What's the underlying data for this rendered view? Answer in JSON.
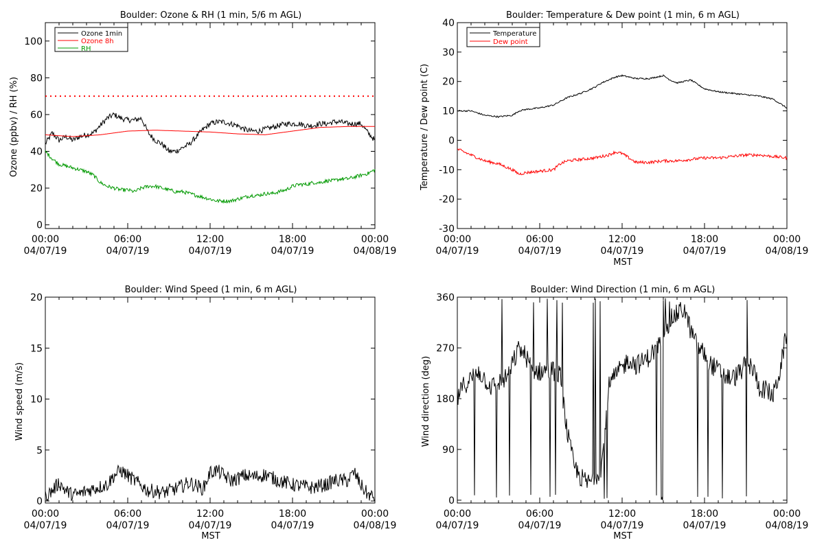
{
  "chart_data": [
    {
      "id": "ozone_rh",
      "type": "line",
      "title": "Boulder: Ozone & RH (1 min, 5/6 m AGL)",
      "xlabel": "",
      "ylabel": "Ozone (ppbv) / RH (%)",
      "xlim": [
        0,
        24
      ],
      "ylim": [
        -2,
        110
      ],
      "yticks": [
        0,
        20,
        40,
        60,
        80,
        100
      ],
      "reference_line": {
        "y": 70,
        "color": "#ff0000",
        "style": "dotted"
      },
      "legend_position": "top-left",
      "series": [
        {
          "name": "Ozone 1min",
          "color": "#000000",
          "noise": 1.5,
          "x": [
            0,
            0.5,
            1,
            1.5,
            2,
            2.5,
            3,
            3.5,
            4,
            4.5,
            5,
            5.5,
            6,
            6.5,
            7,
            7.5,
            8,
            8.5,
            9,
            9.5,
            10,
            10.5,
            11,
            11.5,
            12,
            12.5,
            13,
            13.5,
            14,
            14.5,
            15,
            15.5,
            16,
            16.5,
            17,
            17.5,
            18,
            18.5,
            19,
            19.5,
            20,
            20.5,
            21,
            21.5,
            22,
            22.5,
            23,
            23.5,
            24
          ],
          "y": [
            44,
            50,
            46,
            48,
            46,
            48,
            49,
            50,
            54,
            58,
            60,
            58,
            57,
            57,
            58,
            50,
            46,
            44,
            40,
            40,
            42,
            44,
            48,
            52,
            55,
            56,
            56,
            55,
            54,
            52,
            51,
            51,
            52,
            53,
            54,
            55,
            55,
            55,
            54,
            54,
            55,
            55,
            56,
            56,
            55,
            55,
            55,
            50,
            46
          ]
        },
        {
          "name": "Ozone 8h",
          "color": "#ff0000",
          "noise": 0,
          "x": [
            0,
            2,
            4,
            6,
            8,
            10,
            12,
            14,
            16,
            18,
            20,
            22,
            24
          ],
          "y": [
            49,
            48,
            49,
            51,
            51.5,
            51,
            50.5,
            49.5,
            49,
            51,
            53,
            53.5,
            53.5
          ]
        },
        {
          "name": "RH",
          "color": "#009900",
          "noise": 1,
          "x": [
            0,
            0.5,
            1,
            1.5,
            2,
            2.5,
            3,
            3.5,
            4,
            4.5,
            5,
            5.5,
            6,
            6.5,
            7,
            7.5,
            8,
            8.5,
            9,
            9.5,
            10,
            10.5,
            11,
            11.5,
            12,
            12.5,
            13,
            13.5,
            14,
            14.5,
            15,
            15.5,
            16,
            16.5,
            17,
            17.5,
            18,
            18.5,
            19,
            19.5,
            20,
            20.5,
            21,
            21.5,
            22,
            22.5,
            23,
            23.5,
            24
          ],
          "y": [
            40,
            36,
            33,
            32,
            31,
            30,
            29,
            27,
            23,
            21,
            20,
            19,
            19,
            18,
            20,
            21,
            21,
            20,
            19,
            18,
            18,
            17,
            16,
            15,
            14,
            13,
            13,
            13,
            14,
            15,
            16,
            16,
            17,
            17,
            18,
            19,
            21,
            22,
            22,
            23,
            23,
            24,
            24,
            25,
            25,
            26,
            27,
            28,
            30
          ]
        }
      ]
    },
    {
      "id": "temp_dew",
      "type": "line",
      "title": "Boulder: Temperature & Dew point (1 min, 6 m AGL)",
      "xlabel": "MST",
      "ylabel": "Temperature / Dew point (C)",
      "xlim": [
        0,
        24
      ],
      "ylim": [
        -30,
        40
      ],
      "yticks": [
        -30,
        -20,
        -10,
        0,
        10,
        20,
        30,
        40
      ],
      "legend_position": "top-left",
      "series": [
        {
          "name": "Temperature",
          "color": "#000000",
          "noise": 0.25,
          "x": [
            0,
            1,
            2,
            3,
            4,
            4.5,
            5,
            6,
            7,
            8,
            9,
            10,
            10.5,
            11,
            11.5,
            12,
            12.5,
            13,
            14,
            15,
            15.5,
            16,
            16.5,
            17,
            17.5,
            18,
            19,
            20,
            21,
            22,
            23,
            23.5,
            24
          ],
          "y": [
            10,
            10,
            8.5,
            8,
            8.5,
            10,
            10.5,
            11,
            12,
            14.5,
            16,
            18,
            19.5,
            20.5,
            21.5,
            22,
            21.5,
            21,
            21,
            22,
            20.5,
            19.5,
            20,
            20.5,
            19,
            17.5,
            16.5,
            16,
            15.5,
            15,
            14,
            12.5,
            11
          ]
        },
        {
          "name": "Dew point",
          "color": "#ff0000",
          "noise": 0.5,
          "x": [
            0,
            1,
            2,
            3,
            4,
            4.5,
            5,
            6,
            7,
            7.5,
            8,
            9,
            10,
            11,
            11.5,
            12,
            12.5,
            13,
            14,
            15,
            16,
            17,
            18,
            19,
            20,
            21,
            22,
            23,
            24
          ],
          "y": [
            -3,
            -5,
            -7,
            -8,
            -10,
            -11.5,
            -11,
            -10.5,
            -10,
            -8,
            -7,
            -6.5,
            -6,
            -5,
            -4,
            -4.5,
            -6,
            -7.5,
            -7.5,
            -7,
            -7,
            -6.5,
            -6,
            -6,
            -5.5,
            -5,
            -5,
            -5.5,
            -6
          ]
        }
      ]
    },
    {
      "id": "wind_speed",
      "type": "line",
      "title": "Boulder: Wind Speed (1 min, 6 m AGL)",
      "xlabel": "MST",
      "ylabel": "Wind speed (m/s)",
      "xlim": [
        0,
        24
      ],
      "ylim": [
        -0.2,
        20
      ],
      "yticks": [
        0,
        5,
        10,
        15,
        20
      ],
      "series": [
        {
          "name": "",
          "color": "#000000",
          "noise": 0.7,
          "x": [
            0,
            0.5,
            1,
            1.5,
            2,
            2.5,
            3,
            3.5,
            4,
            4.5,
            5,
            5.5,
            6,
            6.5,
            7,
            7.5,
            8,
            8.5,
            9,
            9.5,
            10,
            10.5,
            11,
            11.5,
            12,
            12.5,
            13,
            13.5,
            14,
            14.5,
            15,
            15.5,
            16,
            16.5,
            17,
            17.5,
            18,
            18.5,
            19,
            19.5,
            20,
            20.5,
            21,
            21.5,
            22,
            22.5,
            23,
            23.5,
            24
          ],
          "y": [
            0.4,
            1,
            1.8,
            1,
            0.6,
            0.7,
            1,
            1.2,
            1.4,
            1.6,
            2.5,
            3,
            2.5,
            2,
            1.5,
            1,
            1,
            0.8,
            1,
            1.2,
            1.5,
            1.8,
            1.5,
            1.2,
            2.8,
            3,
            2.5,
            2,
            2.2,
            2.5,
            2.4,
            2.4,
            2.6,
            2.3,
            2,
            1.8,
            1.6,
            1.5,
            1.4,
            1.3,
            1.5,
            1.6,
            2,
            2,
            2,
            2.8,
            1.5,
            0.6,
            0.3
          ]
        }
      ]
    },
    {
      "id": "wind_dir",
      "type": "line",
      "title": "Boulder: Wind Direction (1 min, 6 m AGL)",
      "xlabel": "MST",
      "ylabel": "Wind direction (deg)",
      "xlim": [
        0,
        24
      ],
      "ylim": [
        -5,
        360
      ],
      "yticks": [
        0,
        90,
        180,
        270,
        360
      ],
      "series": [
        {
          "name": "",
          "color": "#000000",
          "noise": 18,
          "x": [
            0,
            0.5,
            1,
            1.5,
            2,
            2.5,
            3,
            3.5,
            4,
            4.5,
            5,
            5.5,
            6,
            6.5,
            7,
            7.5,
            8,
            8.5,
            9,
            9.5,
            10,
            10.5,
            11,
            11.5,
            12,
            12.5,
            13,
            13.5,
            14,
            14.5,
            15,
            15.5,
            16,
            16.5,
            17,
            17.5,
            18,
            18.5,
            19,
            19.5,
            20,
            20.5,
            21,
            21.5,
            22,
            22.5,
            23,
            23.5,
            24
          ],
          "y": [
            180,
            205,
            215,
            230,
            215,
            200,
            210,
            215,
            240,
            270,
            255,
            230,
            228,
            230,
            230,
            220,
            120,
            60,
            40,
            30,
            40,
            60,
            200,
            220,
            235,
            250,
            240,
            245,
            255,
            270,
            290,
            320,
            330,
            340,
            300,
            270,
            260,
            240,
            230,
            220,
            215,
            225,
            240,
            235,
            200,
            195,
            185,
            230,
            300
          ]
        }
      ]
    }
  ],
  "x_axis": {
    "tick_times": [
      "00:00",
      "06:00",
      "12:00",
      "18:00",
      "00:00"
    ],
    "tick_dates": [
      "04/07/19",
      "04/07/19",
      "04/07/19",
      "04/07/19",
      "04/08/19"
    ],
    "xlabel": "MST"
  }
}
